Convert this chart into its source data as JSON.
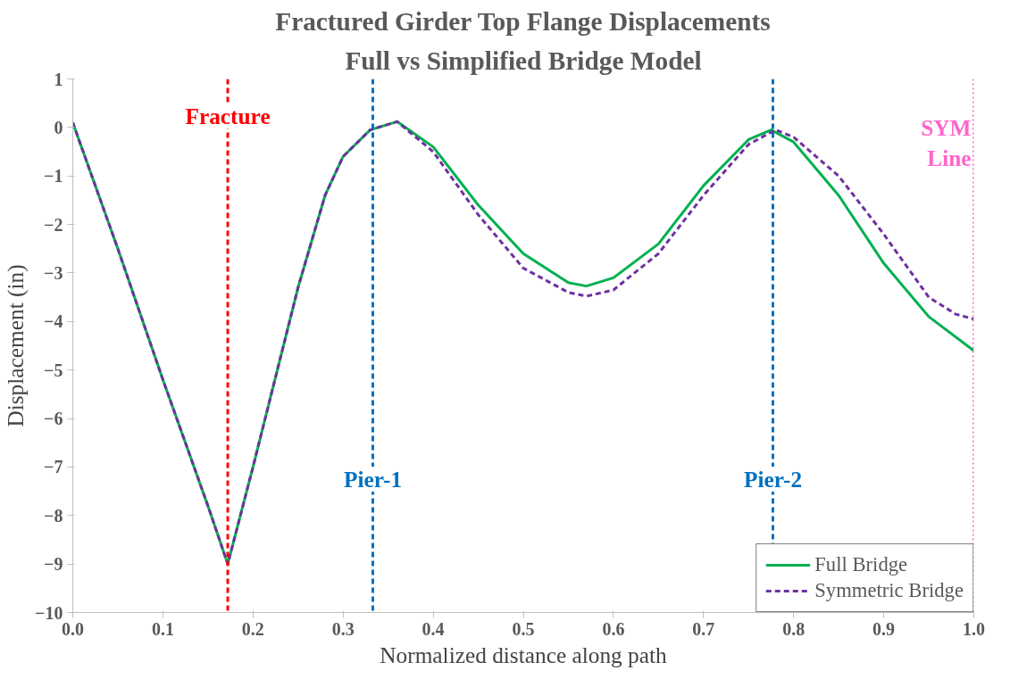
{
  "chart_data": {
    "type": "line",
    "title": "Fractured Girder Top Flange Displacements",
    "subtitle": "Full vs Simplified Bridge Model",
    "xlabel": "Normalized distance along path",
    "ylabel": "Displacement (in)",
    "xlim": [
      0,
      1
    ],
    "ylim": [
      -10,
      1
    ],
    "xticks": [
      {
        "value": 0,
        "label": "0.0"
      },
      0.1,
      0.2,
      0.3,
      0.4,
      0.5,
      0.6,
      0.7,
      0.8,
      0.9,
      {
        "value": 1,
        "label": "1.0"
      }
    ],
    "yticks": [
      -10,
      -9,
      -8,
      -7,
      -6,
      -5,
      -4,
      -3,
      -2,
      -1,
      0,
      1
    ],
    "grid": false,
    "legend": "bottom right",
    "series": [
      {
        "name": "Full Bridge",
        "color": "#00b050",
        "line_style": "solid",
        "x": [
          0,
          0.05,
          0.1,
          0.15,
          0.172,
          0.2,
          0.25,
          0.28,
          0.3,
          0.33,
          0.36,
          0.4,
          0.45,
          0.5,
          0.55,
          0.57,
          0.6,
          0.65,
          0.7,
          0.75,
          0.775,
          0.8,
          0.85,
          0.9,
          0.95,
          1.0
        ],
        "values": [
          0.1,
          -2.5,
          -5.2,
          -7.8,
          -9.0,
          -7.0,
          -3.3,
          -1.4,
          -0.6,
          -0.05,
          0.12,
          -0.4,
          -1.6,
          -2.6,
          -3.2,
          -3.27,
          -3.1,
          -2.4,
          -1.2,
          -0.25,
          -0.05,
          -0.3,
          -1.4,
          -2.8,
          -3.9,
          -4.6
        ]
      },
      {
        "name": "Symmetric Bridge",
        "color": "#7030a0",
        "line_style": "dashed",
        "x": [
          0,
          0.05,
          0.1,
          0.15,
          0.172,
          0.2,
          0.25,
          0.28,
          0.3,
          0.33,
          0.36,
          0.4,
          0.45,
          0.5,
          0.55,
          0.57,
          0.6,
          0.65,
          0.7,
          0.75,
          0.78,
          0.8,
          0.85,
          0.9,
          0.95,
          0.98,
          1.0
        ],
        "values": [
          0.1,
          -2.5,
          -5.2,
          -7.8,
          -9.0,
          -7.0,
          -3.3,
          -1.4,
          -0.6,
          -0.05,
          0.12,
          -0.5,
          -1.8,
          -2.9,
          -3.4,
          -3.48,
          -3.35,
          -2.6,
          -1.4,
          -0.35,
          -0.05,
          -0.2,
          -1.0,
          -2.2,
          -3.5,
          -3.85,
          -3.95
        ]
      }
    ],
    "ref_lines": [
      {
        "axis": "x",
        "value": 0.172,
        "label": "Fracture",
        "color": "#ff0000",
        "line_style": "dashed"
      },
      {
        "axis": "x",
        "value": 0.333,
        "label": "Pier-1",
        "color": "#0070c0",
        "line_style": "dashed"
      },
      {
        "axis": "x",
        "value": 0.777,
        "label": "Pier-2",
        "color": "#0070c0",
        "line_style": "dashed"
      },
      {
        "axis": "x",
        "value": 1.0,
        "label": "SYM\nLine",
        "color": "#ff66cc",
        "line_style": "dotted"
      }
    ]
  }
}
